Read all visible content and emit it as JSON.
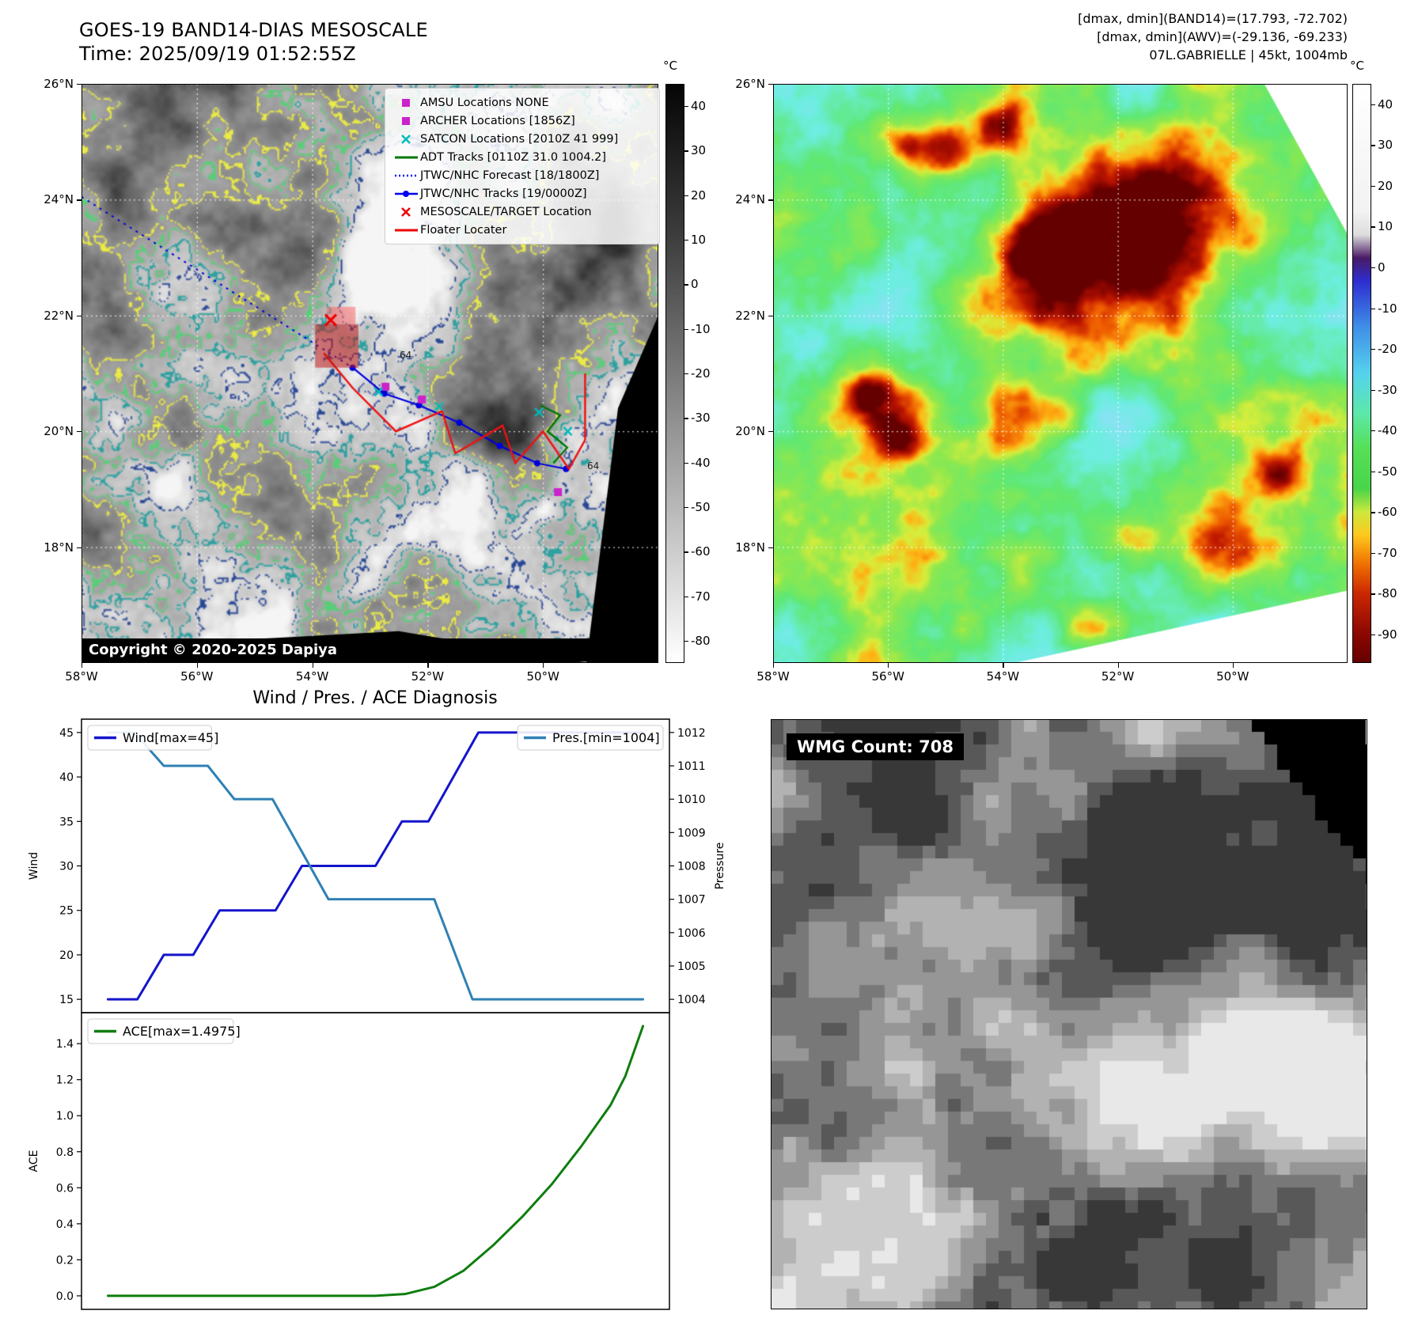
{
  "band14": {
    "title": "GOES-19 BAND14-DIAS MESOSCALE",
    "time": "Time: 2025/09/19 01:52:55Z",
    "copyright": "Copyright © 2020-2025 Dapiya",
    "contour_labels": [
      "64",
      "64"
    ],
    "lat_ticks": [
      "26°N",
      "24°N",
      "22°N",
      "20°N",
      "18°N"
    ],
    "lon_ticks": [
      "58°W",
      "56°W",
      "54°W",
      "52°W",
      "50°W"
    ],
    "colorbar": {
      "unit": "°C",
      "ticks": [
        40,
        30,
        20,
        10,
        0,
        -10,
        -20,
        -30,
        -40,
        -50,
        -60,
        -70,
        -80
      ]
    },
    "legend": [
      {
        "label": "AMSU Locations NONE",
        "marker": "square",
        "color": "#cc22cc"
      },
      {
        "label": "ARCHER Locations [1856Z]",
        "marker": "square",
        "color": "#cc22cc"
      },
      {
        "label": "SATCON Locations [2010Z 41 999]",
        "marker": "x",
        "color": "#00bbbb"
      },
      {
        "label": "ADT Tracks [0110Z 31.0 1004.2]",
        "marker": "line",
        "color": "#007700"
      },
      {
        "label": "JTWC/NHC Forecast [18/1800Z]",
        "marker": "dotted",
        "color": "#0000ee"
      },
      {
        "label": "JTWC/NHC Tracks [19/0000Z]",
        "marker": "line-dot",
        "color": "#0000ee"
      },
      {
        "label": "MESOSCALE/TARGET Location",
        "marker": "x",
        "color": "#ee0000"
      },
      {
        "label": "Floater Locater",
        "marker": "line",
        "color": "#ee0000"
      }
    ]
  },
  "awv": {
    "info_lines": [
      "[dmax, dmin](BAND14)=(17.793, -72.702)",
      "[dmax, dmin](AWV)=(-29.136, -69.233)",
      "07L.GABRIELLE | 45kt, 1004mb"
    ],
    "lat_ticks": [
      "26°N",
      "24°N",
      "22°N",
      "20°N",
      "18°N"
    ],
    "lon_ticks": [
      "58°W",
      "56°W",
      "54°W",
      "52°W",
      "50°W"
    ],
    "colorbar": {
      "unit": "°C",
      "ticks": [
        40,
        30,
        20,
        10,
        0,
        -10,
        -20,
        -30,
        -40,
        -50,
        -60,
        -70,
        -80,
        -90
      ]
    }
  },
  "diagnosis": {
    "title": "Wind / Pres. / ACE Diagnosis"
  },
  "wmg": {
    "label": "WMG Count: 708"
  },
  "chart_data": [
    {
      "type": "line",
      "title": "Wind / Pres. / ACE Diagnosis",
      "ylabel_left": "Wind",
      "ylabel_right": "Pressure",
      "ylim_left": [
        13.5,
        46.5
      ],
      "yticks_left": [
        15,
        20,
        25,
        30,
        35,
        40,
        45
      ],
      "ylim_right": [
        1003.6,
        1012.4
      ],
      "yticks_right": [
        1004,
        1005,
        1006,
        1007,
        1008,
        1009,
        1010,
        1011,
        1012
      ],
      "series": [
        {
          "name": "Wind[max=45]",
          "axis": "left",
          "color": "#1414cc",
          "points": [
            [
              0.045,
              15
            ],
            [
              0.095,
              15
            ],
            [
              0.14,
              20
            ],
            [
              0.19,
              20
            ],
            [
              0.235,
              25
            ],
            [
              0.33,
              25
            ],
            [
              0.375,
              30
            ],
            [
              0.5,
              30
            ],
            [
              0.545,
              35
            ],
            [
              0.59,
              35
            ],
            [
              0.675,
              45
            ],
            [
              0.955,
              45
            ]
          ]
        },
        {
          "name": "Pres.[min=1004]",
          "axis": "right",
          "color": "#2f80b4",
          "points": [
            [
              0.045,
              1012
            ],
            [
              0.09,
              1012
            ],
            [
              0.14,
              1011
            ],
            [
              0.215,
              1011
            ],
            [
              0.26,
              1010
            ],
            [
              0.325,
              1010
            ],
            [
              0.42,
              1007
            ],
            [
              0.6,
              1007
            ],
            [
              0.665,
              1004
            ],
            [
              0.955,
              1004
            ]
          ]
        }
      ]
    },
    {
      "type": "line",
      "ylabel": "ACE",
      "ylim": [
        -0.075,
        1.572
      ],
      "yticks": [
        0.0,
        0.2,
        0.4,
        0.6,
        0.8,
        1.0,
        1.2,
        1.4
      ],
      "series": [
        {
          "name": "ACE[max=1.4975]",
          "color": "#0f7d0f",
          "points": [
            [
              0.045,
              0
            ],
            [
              0.5,
              0
            ],
            [
              0.55,
              0.01
            ],
            [
              0.6,
              0.05
            ],
            [
              0.65,
              0.14
            ],
            [
              0.7,
              0.28
            ],
            [
              0.75,
              0.44
            ],
            [
              0.8,
              0.62
            ],
            [
              0.85,
              0.83
            ],
            [
              0.9,
              1.06
            ],
            [
              0.925,
              1.22
            ],
            [
              0.955,
              1.4975
            ]
          ]
        }
      ]
    }
  ]
}
